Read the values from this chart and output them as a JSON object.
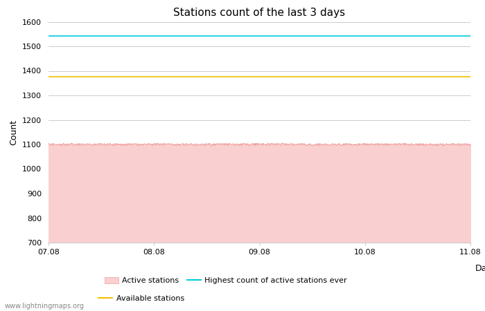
{
  "title": "Stations count of the last 3 days",
  "xlabel": "Day",
  "ylabel": "Count",
  "ylim": [
    700,
    1600
  ],
  "yticks": [
    700,
    800,
    900,
    1000,
    1100,
    1200,
    1300,
    1400,
    1500,
    1600
  ],
  "x_start": 0,
  "x_end": 96,
  "active_stations_value": 1100,
  "active_stations_noise": 5,
  "highest_ever_value": 1543,
  "available_stations_value": 1375,
  "fill_color": "#f9d0cf",
  "line_color": "#f0a0a0",
  "highest_ever_color": "#00ccdd",
  "available_color": "#f0c000",
  "background_color": "#ffffff",
  "grid_color": "#cccccc",
  "x_tick_labels": [
    "07.08",
    "08.08",
    "09.08",
    "10.08",
    "11.08"
  ],
  "x_tick_positions": [
    0,
    24,
    48,
    72,
    96
  ],
  "watermark": "www.lightningmaps.org",
  "title_fontsize": 11,
  "axis_fontsize": 9,
  "tick_fontsize": 8
}
